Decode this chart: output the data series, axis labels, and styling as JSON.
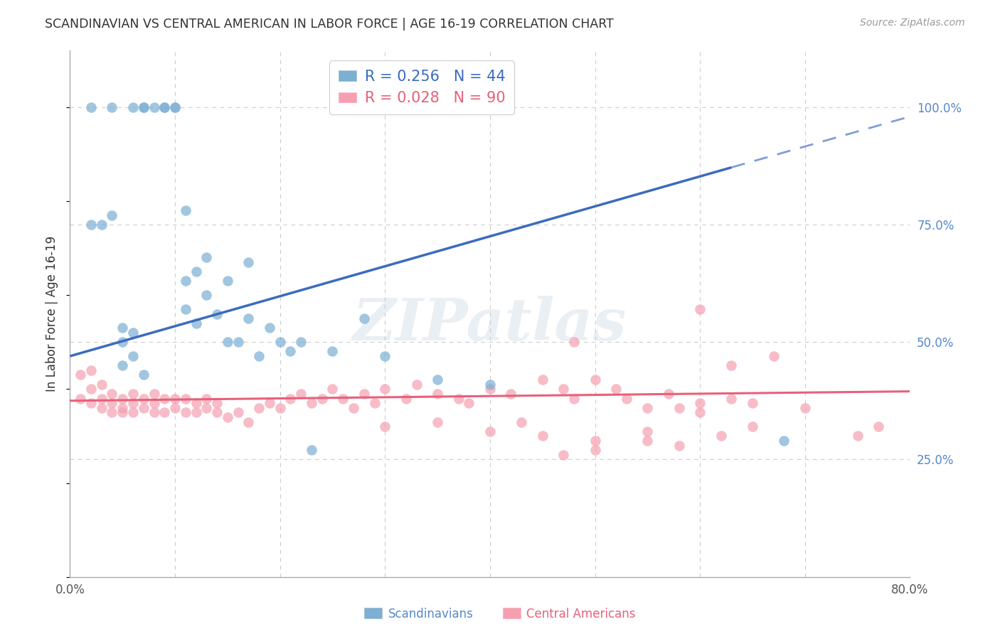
{
  "title": "SCANDINAVIAN VS CENTRAL AMERICAN IN LABOR FORCE | AGE 16-19 CORRELATION CHART",
  "source": "Source: ZipAtlas.com",
  "ylabel": "In Labor Force | Age 16-19",
  "xlim": [
    0.0,
    0.8
  ],
  "ylim": [
    0.0,
    1.12
  ],
  "xticks": [
    0.0,
    0.1,
    0.2,
    0.3,
    0.4,
    0.5,
    0.6,
    0.7,
    0.8
  ],
  "xticklabels": [
    "0.0%",
    "",
    "",
    "",
    "",
    "",
    "",
    "",
    "80.0%"
  ],
  "ytick_right": [
    0.25,
    0.5,
    0.75,
    1.0
  ],
  "ytick_right_labels": [
    "25.0%",
    "50.0%",
    "75.0%",
    "100.0%"
  ],
  "legend_blue_r": "R = 0.256",
  "legend_blue_n": "N = 44",
  "legend_pink_r": "R = 0.028",
  "legend_pink_n": "N = 90",
  "blue_color": "#7BAFD4",
  "pink_color": "#F4A0B0",
  "blue_line_color": "#3A6BBF",
  "pink_line_color": "#E8607A",
  "grid_color": "#CCCCCC",
  "background_color": "#FFFFFF",
  "watermark": "ZIPatlas",
  "blue_line_x0": 0.0,
  "blue_line_y0": 0.47,
  "blue_line_x1": 0.8,
  "blue_line_y1": 0.98,
  "blue_line_solid_end": 0.63,
  "pink_line_x0": 0.0,
  "pink_line_y0": 0.375,
  "pink_line_x1": 0.8,
  "pink_line_y1": 0.395,
  "scand_x": [
    0.02,
    0.04,
    0.06,
    0.07,
    0.07,
    0.08,
    0.09,
    0.09,
    0.1,
    0.1,
    0.11,
    0.11,
    0.11,
    0.12,
    0.12,
    0.13,
    0.13,
    0.14,
    0.15,
    0.15,
    0.16,
    0.17,
    0.17,
    0.18,
    0.19,
    0.2,
    0.21,
    0.22,
    0.23,
    0.25,
    0.28,
    0.3,
    0.35,
    0.4,
    0.68,
    0.02,
    0.03,
    0.04,
    0.05,
    0.05,
    0.05,
    0.06,
    0.06,
    0.07
  ],
  "scand_y": [
    1.0,
    1.0,
    1.0,
    1.0,
    1.0,
    1.0,
    1.0,
    1.0,
    1.0,
    1.0,
    0.78,
    0.63,
    0.57,
    0.65,
    0.54,
    0.68,
    0.6,
    0.56,
    0.5,
    0.63,
    0.5,
    0.67,
    0.55,
    0.47,
    0.53,
    0.5,
    0.48,
    0.5,
    0.27,
    0.48,
    0.55,
    0.47,
    0.42,
    0.41,
    0.29,
    0.75,
    0.75,
    0.77,
    0.45,
    0.5,
    0.53,
    0.47,
    0.52,
    0.43
  ],
  "cent_x": [
    0.01,
    0.01,
    0.02,
    0.02,
    0.02,
    0.03,
    0.03,
    0.03,
    0.04,
    0.04,
    0.04,
    0.05,
    0.05,
    0.05,
    0.06,
    0.06,
    0.06,
    0.07,
    0.07,
    0.08,
    0.08,
    0.08,
    0.09,
    0.09,
    0.1,
    0.1,
    0.11,
    0.11,
    0.12,
    0.12,
    0.13,
    0.13,
    0.14,
    0.14,
    0.15,
    0.16,
    0.17,
    0.18,
    0.19,
    0.2,
    0.21,
    0.22,
    0.23,
    0.24,
    0.25,
    0.26,
    0.27,
    0.28,
    0.29,
    0.3,
    0.32,
    0.33,
    0.35,
    0.37,
    0.38,
    0.4,
    0.42,
    0.45,
    0.47,
    0.48,
    0.5,
    0.52,
    0.55,
    0.57,
    0.58,
    0.6,
    0.62,
    0.63,
    0.65,
    0.67,
    0.7,
    0.75,
    0.77,
    0.3,
    0.35,
    0.4,
    0.45,
    0.5,
    0.55,
    0.58,
    0.6,
    0.55,
    0.63,
    0.65,
    0.48,
    0.53,
    0.6,
    0.43,
    0.47,
    0.5
  ],
  "cent_y": [
    0.43,
    0.38,
    0.4,
    0.44,
    0.37,
    0.41,
    0.38,
    0.36,
    0.39,
    0.37,
    0.35,
    0.38,
    0.36,
    0.35,
    0.39,
    0.37,
    0.35,
    0.38,
    0.36,
    0.39,
    0.37,
    0.35,
    0.38,
    0.35,
    0.38,
    0.36,
    0.38,
    0.35,
    0.37,
    0.35,
    0.38,
    0.36,
    0.37,
    0.35,
    0.34,
    0.35,
    0.33,
    0.36,
    0.37,
    0.36,
    0.38,
    0.39,
    0.37,
    0.38,
    0.4,
    0.38,
    0.36,
    0.39,
    0.37,
    0.4,
    0.38,
    0.41,
    0.39,
    0.38,
    0.37,
    0.4,
    0.39,
    0.42,
    0.4,
    0.38,
    0.42,
    0.4,
    0.36,
    0.39,
    0.36,
    0.37,
    0.3,
    0.38,
    0.37,
    0.47,
    0.36,
    0.3,
    0.32,
    0.32,
    0.33,
    0.31,
    0.3,
    0.27,
    0.31,
    0.28,
    0.57,
    0.29,
    0.45,
    0.32,
    0.5,
    0.38,
    0.35,
    0.33,
    0.26,
    0.29
  ]
}
